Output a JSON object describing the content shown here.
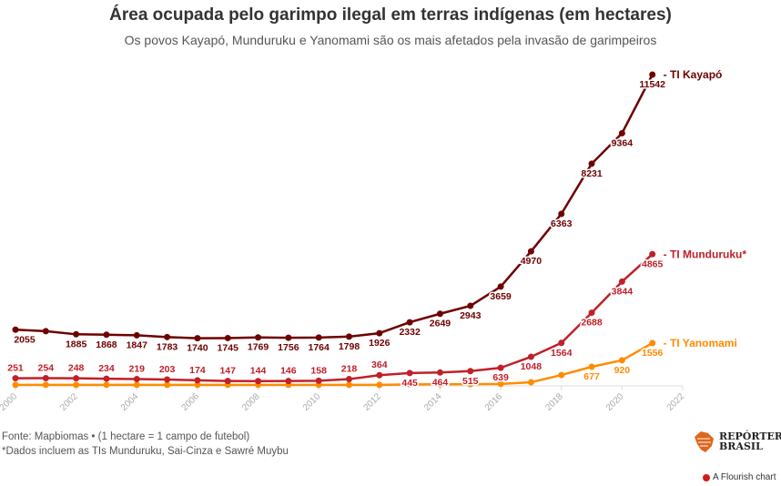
{
  "chart_data": {
    "type": "line",
    "title": "Área ocupada pelo garimpo ilegal em terras indígenas (em hectares)",
    "subtitle": "Os povos Kayapó, Munduruku e Yanomami são os mais afetados pela invasão de garimpeiros",
    "x": [
      2000,
      2001,
      2002,
      2003,
      2004,
      2005,
      2006,
      2007,
      2008,
      2009,
      2010,
      2011,
      2012,
      2013,
      2014,
      2015,
      2016,
      2017,
      2018,
      2019,
      2020,
      2021
    ],
    "x_ticks": [
      2000,
      2002,
      2004,
      2006,
      2008,
      2010,
      2012,
      2014,
      2016,
      2018,
      2020,
      2022
    ],
    "xlim": [
      2000,
      2022
    ],
    "ylim": [
      0,
      11542
    ],
    "grid": false,
    "series": [
      {
        "name": "TI Kayapó",
        "color": "#6e0000",
        "values": [
          2055,
          2000,
          1885,
          1868,
          1847,
          1783,
          1740,
          1745,
          1769,
          1756,
          1764,
          1798,
          1926,
          2332,
          2649,
          2943,
          3659,
          4970,
          6363,
          8231,
          9364,
          11542
        ],
        "labeled": [
          true,
          false,
          true,
          true,
          true,
          true,
          true,
          true,
          true,
          true,
          true,
          true,
          true,
          true,
          true,
          true,
          true,
          true,
          true,
          true,
          true,
          true
        ]
      },
      {
        "name": "TI Munduruku*",
        "color": "#c0202a",
        "values": [
          251,
          254,
          248,
          234,
          219,
          203,
          174,
          147,
          144,
          146,
          158,
          218,
          364,
          445,
          464,
          515,
          639,
          1048,
          1564,
          2688,
          3844,
          4865
        ],
        "labeled": [
          true,
          true,
          true,
          true,
          true,
          true,
          true,
          true,
          true,
          true,
          true,
          true,
          true,
          true,
          true,
          true,
          true,
          true,
          true,
          true,
          true,
          true
        ]
      },
      {
        "name": "TI Yanomami",
        "color": "#ff8c00",
        "values": [
          5,
          5,
          5,
          5,
          5,
          5,
          5,
          5,
          5,
          5,
          5,
          5,
          5,
          20,
          25,
          30,
          40,
          100,
          370,
          677,
          920,
          1556
        ],
        "labeled": [
          false,
          false,
          false,
          false,
          false,
          false,
          false,
          false,
          false,
          false,
          false,
          false,
          false,
          false,
          false,
          false,
          false,
          false,
          false,
          true,
          true,
          true
        ]
      }
    ]
  },
  "footer": {
    "source": "Fonte: Mapbiomas • (1 hectare = 1 campo de futebol)",
    "note": "*Dados incluem as TIs Munduruku, Sai-Cinza e Sawré Muybu"
  },
  "logo": {
    "line1": "REPÓRTER",
    "line2": "BRASIL"
  },
  "flourish": "A Flourish chart"
}
